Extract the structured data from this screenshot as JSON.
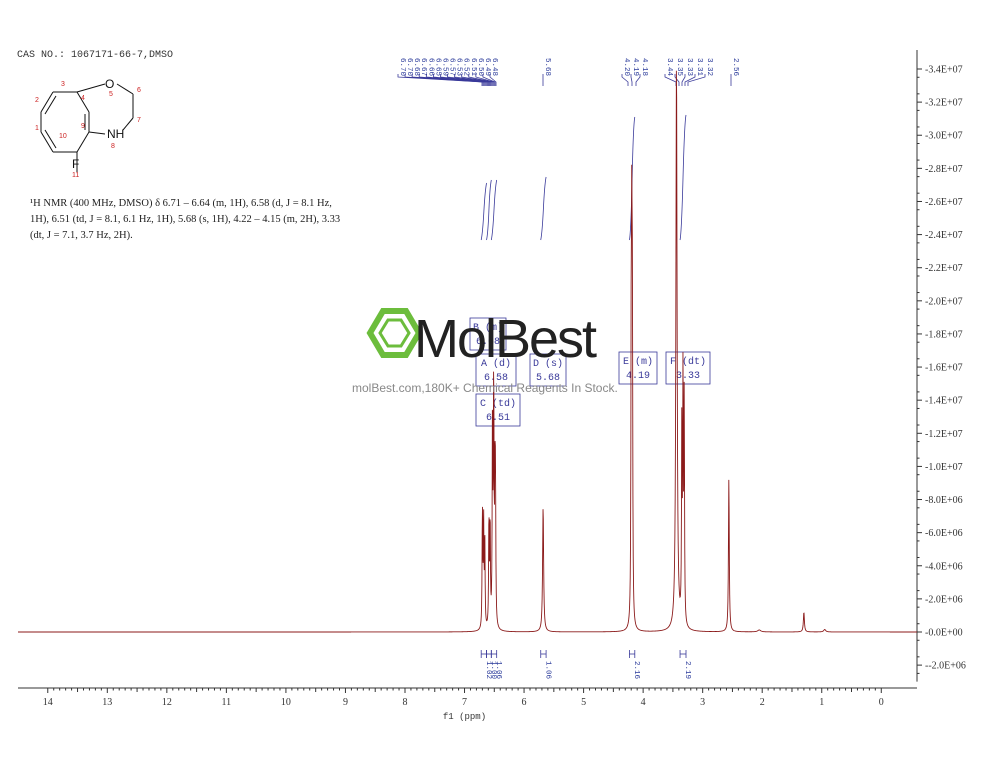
{
  "header": {
    "cas": "CAS NO.: 1067171-66-7,DMSO"
  },
  "description": "¹H NMR (400 MHz, DMSO) δ 6.71 – 6.64 (m, 1H), 6.58 (d, J = 8.1 Hz, 1H), 6.51 (td, J = 8.1, 6.1 Hz, 1H), 5.68 (s, 1H), 4.22 – 4.15 (m, 2H), 3.33 (dt, J = 7.1, 3.7 Hz, 2H).",
  "watermark": {
    "brand": "MolBest",
    "tagline": "molBest.com,180K+ Chemical Reagents In Stock."
  },
  "colors": {
    "spectrum": "#8b1a1a",
    "annotation": "#3a3a9a",
    "logo": "#6cbd3c"
  },
  "molecule": {
    "atoms": [
      {
        "label": "O",
        "num": "5"
      },
      {
        "label": "NH",
        "num": "8"
      },
      {
        "label": "F",
        "num": "11"
      }
    ],
    "carbon_numbers": [
      "1",
      "2",
      "3",
      "4",
      "6",
      "7",
      "9",
      "10"
    ]
  },
  "chart_data": {
    "type": "line",
    "xlabel": "f1 (ppm)",
    "xlim": [
      14.5,
      -0.6
    ],
    "ylim": [
      -3000000,
      34500000
    ],
    "x_ticks": [
      14,
      13,
      12,
      11,
      10,
      9,
      8,
      7,
      6,
      5,
      4,
      3,
      2,
      1,
      0
    ],
    "y_ticks": [
      {
        "v": 34000000,
        "label": "3.4E+07"
      },
      {
        "v": 32000000,
        "label": "3.2E+07"
      },
      {
        "v": 30000000,
        "label": "3.0E+07"
      },
      {
        "v": 28000000,
        "label": "2.8E+07"
      },
      {
        "v": 26000000,
        "label": "2.6E+07"
      },
      {
        "v": 24000000,
        "label": "2.4E+07"
      },
      {
        "v": 22000000,
        "label": "2.2E+07"
      },
      {
        "v": 20000000,
        "label": "2.0E+07"
      },
      {
        "v": 18000000,
        "label": "1.8E+07"
      },
      {
        "v": 16000000,
        "label": "1.6E+07"
      },
      {
        "v": 14000000,
        "label": "1.4E+07"
      },
      {
        "v": 12000000,
        "label": "1.2E+07"
      },
      {
        "v": 10000000,
        "label": "1.0E+07"
      },
      {
        "v": 8000000,
        "label": "8.0E+06"
      },
      {
        "v": 6000000,
        "label": "6.0E+06"
      },
      {
        "v": 4000000,
        "label": "4.0E+06"
      },
      {
        "v": 2000000,
        "label": "2.0E+06"
      },
      {
        "v": 0,
        "label": "0.0E+00"
      },
      {
        "v": -2000000,
        "label": "-2.0E+06"
      }
    ],
    "peaks": [
      {
        "ppm": 6.7,
        "h": 7200000,
        "w": 0.006
      },
      {
        "ppm": 6.68,
        "h": 6800000,
        "w": 0.006
      },
      {
        "ppm": 6.66,
        "h": 5600000,
        "w": 0.006
      },
      {
        "ppm": 6.59,
        "h": 6800000,
        "w": 0.006
      },
      {
        "ppm": 6.57,
        "h": 6500000,
        "w": 0.006
      },
      {
        "ppm": 6.53,
        "h": 13500000,
        "w": 0.006
      },
      {
        "ppm": 6.51,
        "h": 15000000,
        "w": 0.006
      },
      {
        "ppm": 6.49,
        "h": 8600000,
        "w": 0.006
      },
      {
        "ppm": 6.48,
        "h": 8000000,
        "w": 0.006
      },
      {
        "ppm": 5.68,
        "h": 7600000,
        "w": 0.01
      },
      {
        "ppm": 4.2,
        "h": 17000000,
        "w": 0.006
      },
      {
        "ppm": 4.19,
        "h": 20500000,
        "w": 0.006
      },
      {
        "ppm": 4.18,
        "h": 16500000,
        "w": 0.006
      },
      {
        "ppm": 3.44,
        "h": 34500000,
        "w": 0.012
      },
      {
        "ppm": 3.35,
        "h": 12000000,
        "w": 0.006
      },
      {
        "ppm": 3.33,
        "h": 14800000,
        "w": 0.006
      },
      {
        "ppm": 3.31,
        "h": 13500000,
        "w": 0.006
      },
      {
        "ppm": 2.56,
        "h": 9300000,
        "w": 0.008
      },
      {
        "ppm": 1.3,
        "h": 1200000,
        "w": 0.01
      },
      {
        "ppm": 0.95,
        "h": 150000,
        "w": 0.02
      },
      {
        "ppm": 2.05,
        "h": 120000,
        "w": 0.03
      }
    ],
    "peak_labels": [
      "6.70",
      "6.70",
      "6.68",
      "6.67",
      "6.66",
      "6.65",
      "6.59",
      "6.57",
      "6.53",
      "6.52",
      "6.51",
      "6.50",
      "6.49",
      "6.48",
      "5.68",
      "4.20",
      "4.19",
      "4.18",
      "3.44",
      "3.35",
      "3.33",
      "3.31",
      "3.32",
      "2.56"
    ],
    "multiplets": [
      {
        "name": "B (m)",
        "value": "6.68"
      },
      {
        "name": "A (d)",
        "value": "6.58"
      },
      {
        "name": "C (td)",
        "value": "6.51"
      },
      {
        "name": "D (s)",
        "value": "5.68"
      },
      {
        "name": "E (m)",
        "value": "4.19"
      },
      {
        "name": "F (dt)",
        "value": "3.33"
      }
    ],
    "integrals": [
      {
        "from": 6.72,
        "to": 6.63,
        "value": "1.02"
      },
      {
        "from": 6.63,
        "to": 6.55,
        "value": "1.00"
      },
      {
        "from": 6.55,
        "to": 6.46,
        "value": "1.06"
      },
      {
        "from": 5.72,
        "to": 5.63,
        "value": "1.06"
      },
      {
        "from": 4.23,
        "to": 4.14,
        "value": "2.16"
      },
      {
        "from": 3.38,
        "to": 3.28,
        "value": "2.19"
      }
    ]
  }
}
